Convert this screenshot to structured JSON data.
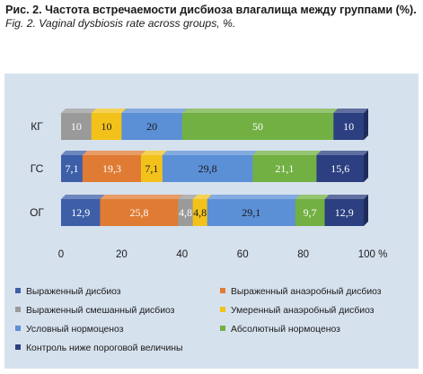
{
  "caption": {
    "ru": "Рис. 2. Частота встречаемости дисбиоза влагалища между группами (%).",
    "en": "Fig. 2. Vaginal dysbiosis rate across groups, %."
  },
  "colors": {
    "panel_bg": "#d6e1ee",
    "series": [
      "#3d5fa8",
      "#e07b33",
      "#9a9a9a",
      "#f2c21b",
      "#5b8fd6",
      "#72b043",
      "#2c3f80"
    ]
  },
  "chart_data": {
    "type": "bar",
    "orientation": "horizontal",
    "stacked": true,
    "style": "3d",
    "categories": [
      "КГ",
      "ГС",
      "ОГ"
    ],
    "series": [
      {
        "name": "Выраженный дисбиоз",
        "values": [
          0,
          7.1,
          12.9
        ],
        "labels": [
          "0",
          "7,1",
          "12,9"
        ]
      },
      {
        "name": "Выраженный анаэробный дисбиоз",
        "values": [
          0,
          19.3,
          25.8
        ],
        "labels": [
          "",
          "19,3",
          "25,8"
        ]
      },
      {
        "name": "Выраженный смешанный дисбиоз",
        "values": [
          10,
          0,
          4.8
        ],
        "labels": [
          "10",
          "",
          "4,8"
        ]
      },
      {
        "name": "Умеренный анаэробный дисбиоз",
        "values": [
          10,
          7.1,
          4.8
        ],
        "labels": [
          "10",
          "7,1",
          "4,8"
        ]
      },
      {
        "name": "Условный нормоценоз",
        "values": [
          20,
          29.8,
          29.1
        ],
        "labels": [
          "20",
          "29,8",
          "29,1"
        ]
      },
      {
        "name": "Абсолютный нормоценоз",
        "values": [
          50,
          21.1,
          9.7
        ],
        "labels": [
          "50",
          "21,1",
          "9,7"
        ]
      },
      {
        "name": "Контроль ниже пороговой величины",
        "values": [
          10,
          15.6,
          12.9
        ],
        "labels": [
          "10",
          "15,6",
          "12,9"
        ]
      }
    ],
    "xlim": [
      0,
      100
    ],
    "xticks": [
      "0",
      "20",
      "40",
      "60",
      "80",
      "100 %"
    ],
    "grid": false,
    "legend_position": "bottom"
  }
}
